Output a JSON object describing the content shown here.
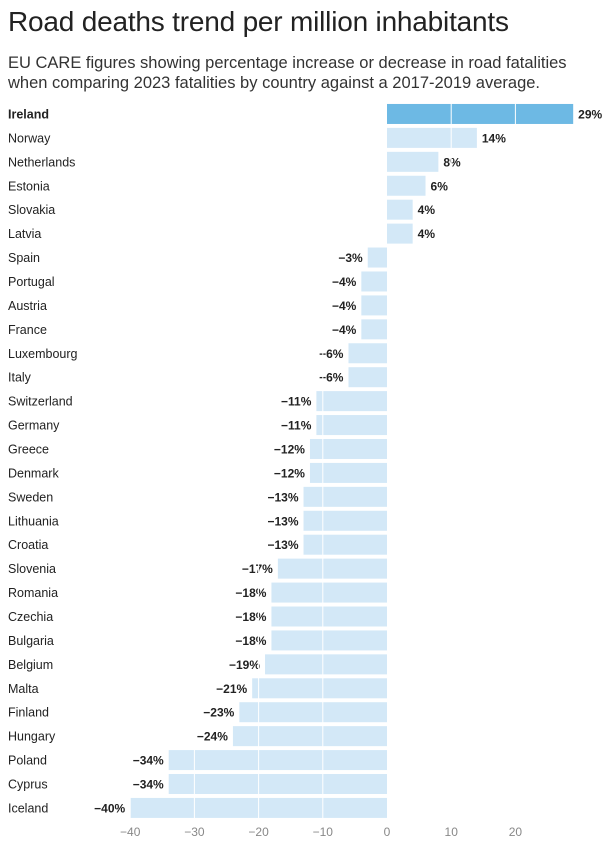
{
  "header": {
    "title": "Road deaths trend per million inhabitants",
    "subtitle": "EU CARE figures showing percentage increase or decrease in road fatalities when comparing 2023 fatalities by country against a 2017-2019 average."
  },
  "colors": {
    "highlight": "#6db9e4",
    "bar": "#d3e8f7",
    "gridline": "#ffffff"
  },
  "chart_data": {
    "type": "bar",
    "orientation": "horizontal",
    "title": "Road deaths trend per million inhabitants",
    "subtitle": "EU CARE figures showing percentage increase or decrease in road fatalities when comparing 2023 fatalities by country against a 2017-2019 average.",
    "categories": [
      "Ireland",
      "Norway",
      "Netherlands",
      "Estonia",
      "Slovakia",
      "Latvia",
      "Spain",
      "Portugal",
      "Austria",
      "France",
      "Luxembourg",
      "Italy",
      "Switzerland",
      "Germany",
      "Greece",
      "Denmark",
      "Sweden",
      "Lithuania",
      "Croatia",
      "Slovenia",
      "Romania",
      "Czechia",
      "Bulgaria",
      "Belgium",
      "Malta",
      "Finland",
      "Hungary",
      "Poland",
      "Cyprus",
      "Iceland"
    ],
    "values": [
      29,
      14,
      8,
      6,
      4,
      4,
      -3,
      -4,
      -4,
      -4,
      -6,
      -6,
      -11,
      -11,
      -12,
      -12,
      -13,
      -13,
      -13,
      -17,
      -18,
      -18,
      -18,
      -19,
      -21,
      -23,
      -24,
      -34,
      -34,
      -40
    ],
    "value_labels": [
      "29%",
      "14%",
      "8%",
      "6%",
      "4%",
      "4%",
      "−3%",
      "−4%",
      "−4%",
      "−4%",
      "−6%",
      "−6%",
      "−11%",
      "−11%",
      "−12%",
      "−12%",
      "−13%",
      "−13%",
      "−13%",
      "−17%",
      "−18%",
      "−18%",
      "−18%",
      "−19%",
      "−21%",
      "−23%",
      "−24%",
      "−34%",
      "−34%",
      "−40%"
    ],
    "highlighted_category": "Ireland",
    "xticks": [
      -40,
      -30,
      -20,
      -10,
      0,
      10,
      20
    ],
    "xtick_labels": [
      "−40",
      "−30",
      "−20",
      "−10",
      "0",
      "10",
      "20"
    ],
    "xlim": [
      -40,
      29
    ],
    "xlabel": "",
    "ylabel": "",
    "grid": true
  }
}
